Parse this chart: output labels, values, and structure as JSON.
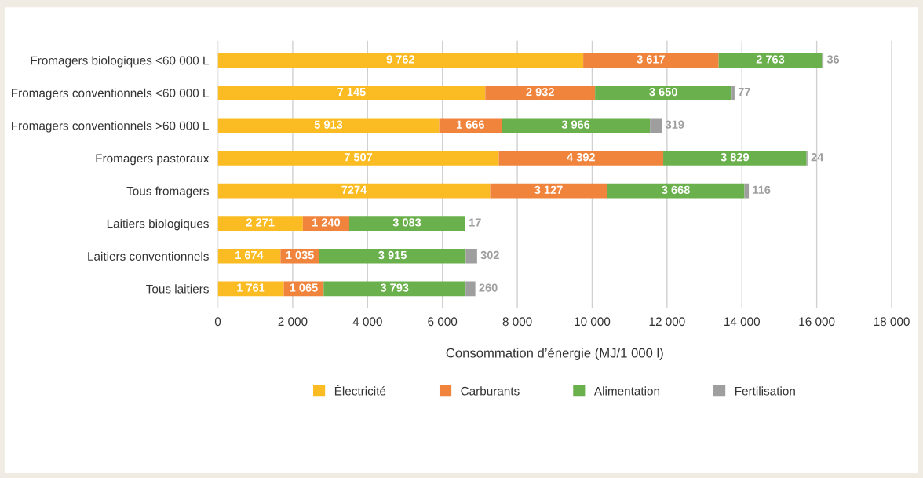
{
  "chart_data": {
    "type": "bar",
    "orientation": "horizontal",
    "stacked": true,
    "categories": [
      "Fromagers biologiques <60 000 L",
      "Fromagers conventionnels <60 000 L",
      "Fromagers conventionnels >60 000 L",
      "Fromagers pastoraux",
      "Tous fromagers",
      "Laitiers biologiques",
      "Laitiers conventionnels",
      "Tous laitiers"
    ],
    "series": [
      {
        "name": "Électricité",
        "color": "#fbbb22",
        "values": [
          9762,
          7145,
          5913,
          7507,
          7274,
          2271,
          1674,
          1761
        ],
        "value_labels": [
          "9 762",
          "7 145",
          "5 913",
          "7 507",
          "7274",
          "2 271",
          "1 674",
          "1 761"
        ]
      },
      {
        "name": "Carburants",
        "color": "#f0843c",
        "values": [
          3617,
          2932,
          1666,
          4392,
          3127,
          1240,
          1035,
          1065
        ],
        "value_labels": [
          "3 617",
          "2 932",
          "1 666",
          "4 392",
          "3 127",
          "1 240",
          "1 035",
          "1 065"
        ]
      },
      {
        "name": "Alimentation",
        "color": "#6ab04c",
        "values": [
          2763,
          3650,
          3966,
          3829,
          3668,
          3083,
          3915,
          3793
        ],
        "value_labels": [
          "2 763",
          "3 650",
          "3 966",
          "3 829",
          "3 668",
          "3 083",
          "3 915",
          "3 793"
        ]
      },
      {
        "name": "Fertilisation",
        "color": "#9e9e9e",
        "values": [
          36,
          77,
          319,
          24,
          116,
          17,
          302,
          260
        ],
        "value_labels": [
          "36",
          "77",
          "319",
          "24",
          "116",
          "17",
          "302",
          "260"
        ]
      }
    ],
    "xlabel": "Consommation d’énergie (MJ/1 000 l)",
    "xlim": [
      0,
      18000
    ],
    "xticks": [
      0,
      {
        "value": 2000,
        "label": "2 000"
      },
      {
        "value": 4000,
        "label": "4 000"
      },
      {
        "value": 6000,
        "label": "6 000"
      },
      {
        "value": 8000,
        "label": "8 000"
      },
      {
        "value": 10000,
        "label": "10 000"
      },
      {
        "value": 12000,
        "label": "12 000"
      },
      {
        "value": 14000,
        "label": "14 000"
      },
      {
        "value": 16000,
        "label": "16 000"
      },
      {
        "value": 18000,
        "label": "18 000"
      }
    ],
    "grid": "x",
    "legend": "bottom"
  }
}
